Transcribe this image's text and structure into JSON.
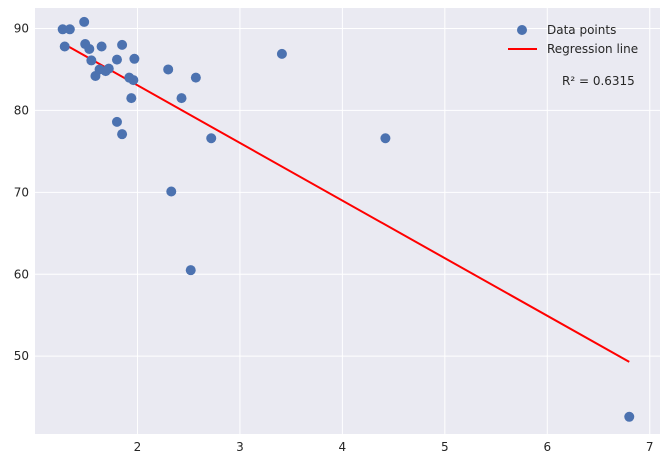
{
  "chart_data": {
    "type": "scatter",
    "title": "",
    "xlabel": "",
    "ylabel": "",
    "xlim": [
      1.0,
      7.1
    ],
    "ylim": [
      40.5,
      92.5
    ],
    "x_ticks": [
      2,
      3,
      4,
      5,
      6,
      7
    ],
    "y_ticks": [
      50,
      60,
      70,
      80,
      90
    ],
    "grid": true,
    "legend_position": "top-right",
    "background_color": "#eaeaf2",
    "series": [
      {
        "name": "Data points",
        "kind": "scatter",
        "color": "#4c72b0",
        "points": [
          {
            "x": 1.27,
            "y": 89.9
          },
          {
            "x": 1.29,
            "y": 87.8
          },
          {
            "x": 1.34,
            "y": 89.9
          },
          {
            "x": 1.48,
            "y": 90.8
          },
          {
            "x": 1.49,
            "y": 88.1
          },
          {
            "x": 1.53,
            "y": 87.5
          },
          {
            "x": 1.55,
            "y": 86.1
          },
          {
            "x": 1.59,
            "y": 84.2
          },
          {
            "x": 1.63,
            "y": 85.0
          },
          {
            "x": 1.65,
            "y": 87.8
          },
          {
            "x": 1.69,
            "y": 84.8
          },
          {
            "x": 1.72,
            "y": 85.1
          },
          {
            "x": 1.8,
            "y": 86.2
          },
          {
            "x": 1.8,
            "y": 78.6
          },
          {
            "x": 1.85,
            "y": 88.0
          },
          {
            "x": 1.85,
            "y": 77.1
          },
          {
            "x": 1.92,
            "y": 84.0
          },
          {
            "x": 1.94,
            "y": 81.5
          },
          {
            "x": 1.96,
            "y": 83.7
          },
          {
            "x": 1.97,
            "y": 86.3
          },
          {
            "x": 2.3,
            "y": 85.0
          },
          {
            "x": 2.33,
            "y": 70.1
          },
          {
            "x": 2.43,
            "y": 81.5
          },
          {
            "x": 2.52,
            "y": 60.5
          },
          {
            "x": 2.57,
            "y": 84.0
          },
          {
            "x": 2.72,
            "y": 76.6
          },
          {
            "x": 3.41,
            "y": 86.9
          },
          {
            "x": 4.42,
            "y": 76.6
          },
          {
            "x": 6.8,
            "y": 42.6
          }
        ]
      },
      {
        "name": "Regression line",
        "kind": "line",
        "color": "#ff0000",
        "x": [
          1.27,
          6.8
        ],
        "y": [
          88.2,
          49.3
        ]
      }
    ],
    "annotation": "R² = 0.6315"
  }
}
